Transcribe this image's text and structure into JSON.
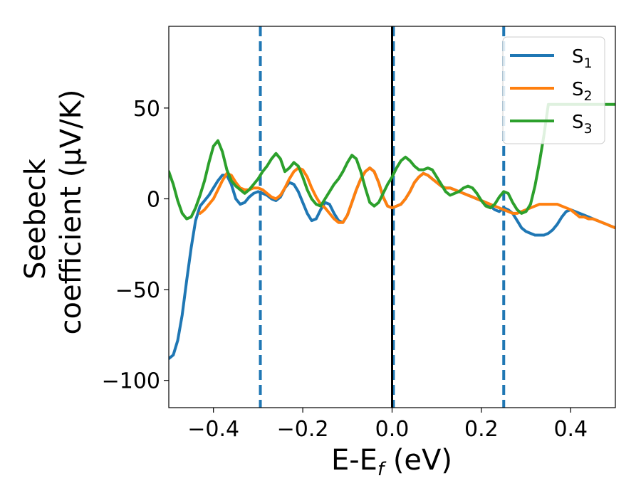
{
  "chart_data": {
    "type": "line",
    "xlabel": "E-E",
    "xlabel_sub": "f",
    "xlabel_unit": " (eV)",
    "ylabel_line1": "Seebeck",
    "ylabel_line2": "coefficient  (μV/K)",
    "xlim": [
      -0.5,
      0.5
    ],
    "ylim": [
      -115,
      95
    ],
    "xticks": [
      -0.4,
      -0.2,
      0.0,
      0.2,
      0.4
    ],
    "xtick_labels": [
      "−0.4",
      "−0.2",
      "0.0",
      "0.2",
      "0.4"
    ],
    "yticks": [
      50,
      0,
      -50,
      -100
    ],
    "ytick_labels": [
      "50",
      "0",
      "−50",
      "−100"
    ],
    "grid": false,
    "legend_position": "top-right",
    "vlines": [
      {
        "x": -0.295,
        "style": "dashed",
        "color": "#1f77b4"
      },
      {
        "x": 0.003,
        "style": "dashed",
        "color": "#1f77b4"
      },
      {
        "x": 0.25,
        "style": "dashed",
        "color": "#1f77b4"
      },
      {
        "x": 0.0,
        "style": "solid",
        "color": "#000000"
      }
    ],
    "series": [
      {
        "name": "S",
        "name_sub": "1",
        "color": "#1f77b4",
        "x": [
          -0.5,
          -0.49,
          -0.48,
          -0.47,
          -0.46,
          -0.45,
          -0.44,
          -0.43,
          -0.42,
          -0.41,
          -0.4,
          -0.39,
          -0.38,
          -0.37,
          -0.36,
          -0.35,
          -0.34,
          -0.33,
          -0.32,
          -0.31,
          -0.3,
          -0.29,
          -0.28,
          -0.27,
          -0.26,
          -0.25,
          -0.24,
          -0.23,
          -0.22,
          -0.21,
          -0.2,
          -0.19,
          -0.18,
          -0.17,
          -0.16,
          -0.15,
          -0.14,
          -0.13,
          -0.12,
          -0.11,
          -0.1,
          -0.09,
          -0.08,
          -0.07,
          -0.06,
          -0.05,
          -0.04,
          -0.03,
          -0.02,
          -0.01,
          0.0,
          0.01,
          0.02,
          0.03,
          0.04,
          0.05,
          0.06,
          0.07,
          0.08,
          0.09,
          0.1,
          0.11,
          0.12,
          0.13,
          0.14,
          0.15,
          0.16,
          0.17,
          0.18,
          0.19,
          0.2,
          0.21,
          0.22,
          0.23,
          0.24,
          0.25,
          0.26,
          0.27,
          0.28,
          0.29,
          0.3,
          0.31,
          0.32,
          0.33,
          0.34,
          0.35,
          0.36,
          0.37,
          0.38,
          0.39,
          0.4,
          0.41,
          0.42,
          0.43,
          0.44,
          0.45,
          0.46,
          0.47,
          0.48,
          0.49,
          0.5
        ],
        "y": [
          -88,
          -86,
          -78,
          -64,
          -45,
          -27,
          -12,
          -4,
          -1,
          2,
          6,
          10,
          13,
          13,
          8,
          0,
          -3,
          -2,
          1,
          3,
          4,
          3,
          2,
          0,
          -1,
          1,
          6,
          9,
          8,
          4,
          -2,
          -8,
          -12,
          -11,
          -6,
          -2,
          -3,
          -8,
          -12,
          -13,
          -9,
          -2,
          5,
          11,
          15,
          17,
          15,
          9,
          1,
          -4,
          -5,
          -4,
          -3,
          0,
          4,
          9,
          12,
          14,
          13,
          11,
          9,
          7,
          6,
          6,
          5,
          4,
          3,
          2,
          1,
          0,
          -1,
          -2,
          -4,
          -6,
          -7,
          -5,
          -6,
          -8,
          -12,
          -16,
          -18,
          -19,
          -20,
          -20,
          -20,
          -19,
          -17,
          -14,
          -10,
          -7,
          -6,
          -7,
          -8,
          -9,
          -10,
          -11,
          -12,
          -13,
          -14,
          -15,
          -16
        ]
      },
      {
        "name": "S",
        "name_sub": "2",
        "color": "#ff7f0e",
        "x": [
          -0.43,
          -0.42,
          -0.41,
          -0.4,
          -0.39,
          -0.38,
          -0.37,
          -0.36,
          -0.35,
          -0.34,
          -0.33,
          -0.32,
          -0.31,
          -0.3,
          -0.29,
          -0.28,
          -0.27,
          -0.26,
          -0.25,
          -0.24,
          -0.23,
          -0.22,
          -0.21,
          -0.2,
          -0.19,
          -0.18,
          -0.17,
          -0.16,
          -0.15,
          -0.14,
          -0.13,
          -0.12,
          -0.11,
          -0.1,
          -0.09,
          -0.08,
          -0.07,
          -0.06,
          -0.05,
          -0.04,
          -0.03,
          -0.02,
          -0.01,
          0.0,
          0.01,
          0.02,
          0.03,
          0.04,
          0.05,
          0.06,
          0.07,
          0.08,
          0.09,
          0.1,
          0.11,
          0.12,
          0.13,
          0.14,
          0.15,
          0.16,
          0.17,
          0.18,
          0.19,
          0.2,
          0.21,
          0.22,
          0.23,
          0.24,
          0.25,
          0.26,
          0.27,
          0.28,
          0.29,
          0.3,
          0.31,
          0.32,
          0.33,
          0.34,
          0.35,
          0.36,
          0.37,
          0.38,
          0.39,
          0.4,
          0.41,
          0.42,
          0.43,
          0.44,
          0.45,
          0.46,
          0.47,
          0.48,
          0.49,
          0.5
        ],
        "y": [
          -8,
          -6,
          -3,
          0,
          5,
          10,
          14,
          13,
          9,
          6,
          5,
          5,
          6,
          6,
          5,
          3,
          1,
          0,
          2,
          6,
          11,
          15,
          17,
          16,
          12,
          6,
          1,
          -3,
          -5,
          -8,
          -11,
          -13,
          -13,
          -9,
          -2,
          5,
          11,
          15,
          17,
          15,
          9,
          1,
          -4,
          -5,
          -4,
          -3,
          0,
          4,
          9,
          12,
          14,
          13,
          11,
          9,
          7,
          6,
          6,
          5,
          4,
          3,
          2,
          1,
          0,
          -1,
          -2,
          -3,
          -4,
          -5,
          -6,
          -7,
          -8,
          -8,
          -7,
          -6,
          -5,
          -4,
          -3,
          -3,
          -3,
          -3,
          -3,
          -4,
          -5,
          -6,
          -8,
          -10,
          -10,
          -11,
          -11,
          -12,
          -13,
          -14,
          -15,
          -16
        ]
      },
      {
        "name": "S",
        "name_sub": "3",
        "color": "#2ca02c",
        "x": [
          -0.5,
          -0.49,
          -0.48,
          -0.47,
          -0.46,
          -0.45,
          -0.44,
          -0.43,
          -0.42,
          -0.41,
          -0.4,
          -0.39,
          -0.38,
          -0.37,
          -0.36,
          -0.35,
          -0.34,
          -0.33,
          -0.32,
          -0.31,
          -0.3,
          -0.29,
          -0.28,
          -0.27,
          -0.26,
          -0.25,
          -0.24,
          -0.23,
          -0.22,
          -0.21,
          -0.2,
          -0.19,
          -0.18,
          -0.17,
          -0.16,
          -0.15,
          -0.14,
          -0.13,
          -0.12,
          -0.11,
          -0.1,
          -0.09,
          -0.08,
          -0.07,
          -0.06,
          -0.05,
          -0.04,
          -0.03,
          -0.02,
          -0.01,
          0.0,
          0.01,
          0.02,
          0.03,
          0.04,
          0.05,
          0.06,
          0.07,
          0.08,
          0.09,
          0.1,
          0.11,
          0.12,
          0.13,
          0.14,
          0.15,
          0.16,
          0.17,
          0.18,
          0.19,
          0.2,
          0.21,
          0.22,
          0.23,
          0.24,
          0.25,
          0.26,
          0.27,
          0.28,
          0.29,
          0.3,
          0.31,
          0.32,
          0.33,
          0.34,
          0.35,
          0.36,
          0.37,
          0.38,
          0.39,
          0.4,
          0.41,
          0.42,
          0.43,
          0.44,
          0.45,
          0.46,
          0.47,
          0.48,
          0.49,
          0.5
        ],
        "y": [
          15,
          8,
          -1,
          -8,
          -11,
          -10,
          -5,
          2,
          10,
          20,
          29,
          32,
          26,
          16,
          10,
          7,
          5,
          3,
          5,
          8,
          11,
          15,
          18,
          22,
          25,
          22,
          15,
          17,
          20,
          18,
          12,
          5,
          0,
          -3,
          -4,
          0,
          4,
          8,
          11,
          15,
          20,
          24,
          22,
          15,
          6,
          -2,
          -4,
          -2,
          3,
          8,
          12,
          17,
          21,
          23,
          21,
          18,
          16,
          16,
          17,
          16,
          12,
          8,
          4,
          2,
          3,
          4,
          6,
          7,
          6,
          3,
          -1,
          -4,
          -5,
          -3,
          1,
          4,
          3,
          -2,
          -6,
          -8,
          -7,
          -3,
          7,
          20,
          35,
          52,
          52,
          52,
          52,
          52,
          52,
          52,
          52,
          52,
          52,
          52,
          52,
          52,
          52,
          52,
          52
        ]
      }
    ]
  }
}
